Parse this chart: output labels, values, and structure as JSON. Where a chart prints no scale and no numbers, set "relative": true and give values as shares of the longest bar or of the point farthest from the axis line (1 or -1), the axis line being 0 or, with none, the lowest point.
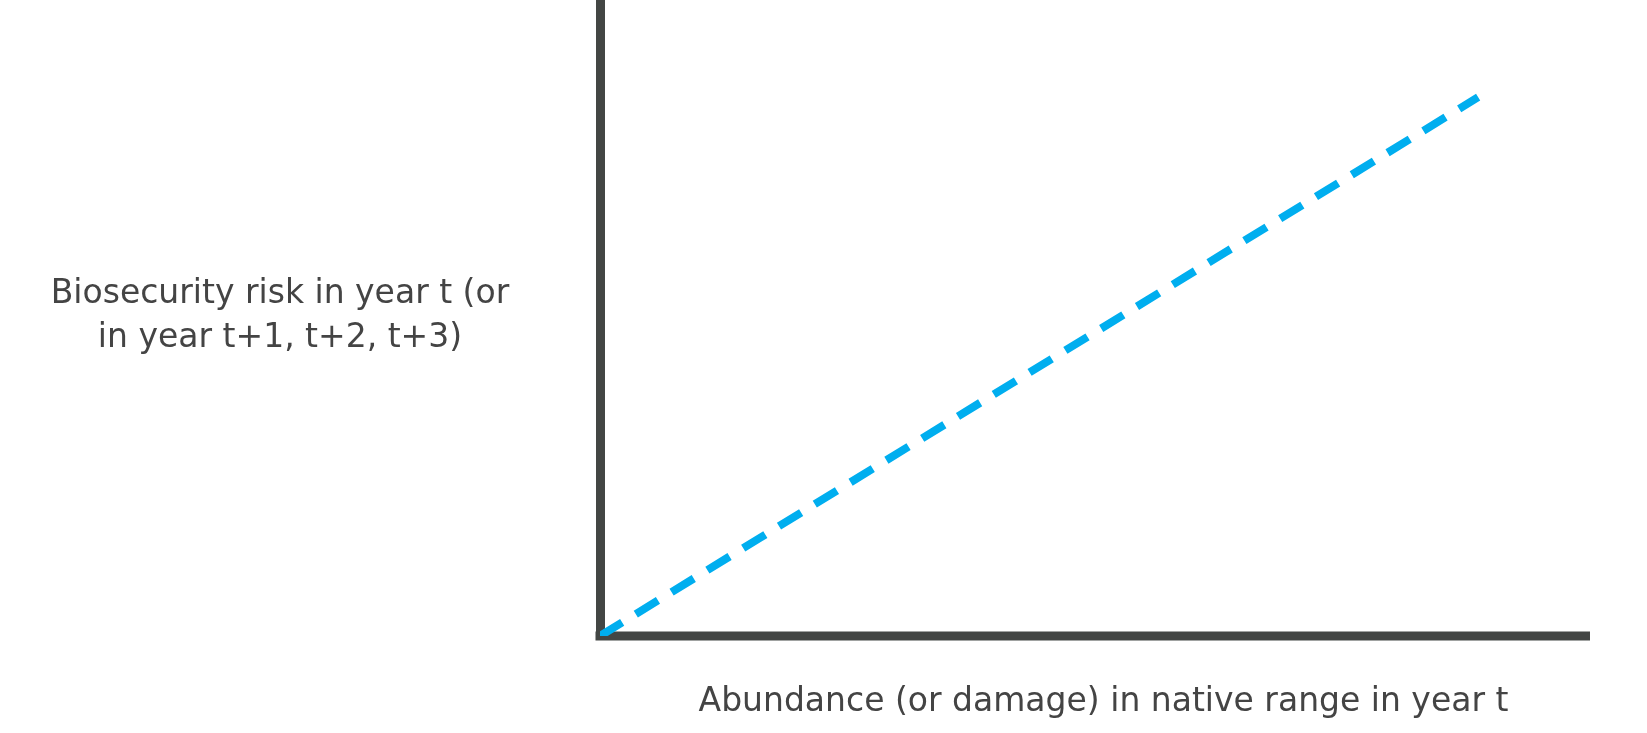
{
  "chart_data": {
    "type": "line",
    "xlabel": "Abundance (or damage) in native range in year t",
    "ylabel": "Biosecurity risk in year t (or in year t+1, t+2, t+3)",
    "categories": [
      null,
      null
    ],
    "values": [
      0,
      1
    ],
    "color": "#00aeef",
    "relative": true,
    "line_style": "dashed",
    "marker": "none",
    "grid": false,
    "ref_lines": [
      {
        "axis": "y",
        "value": 0,
        "color": "#434644"
      }
    ],
    "legend": false
  }
}
